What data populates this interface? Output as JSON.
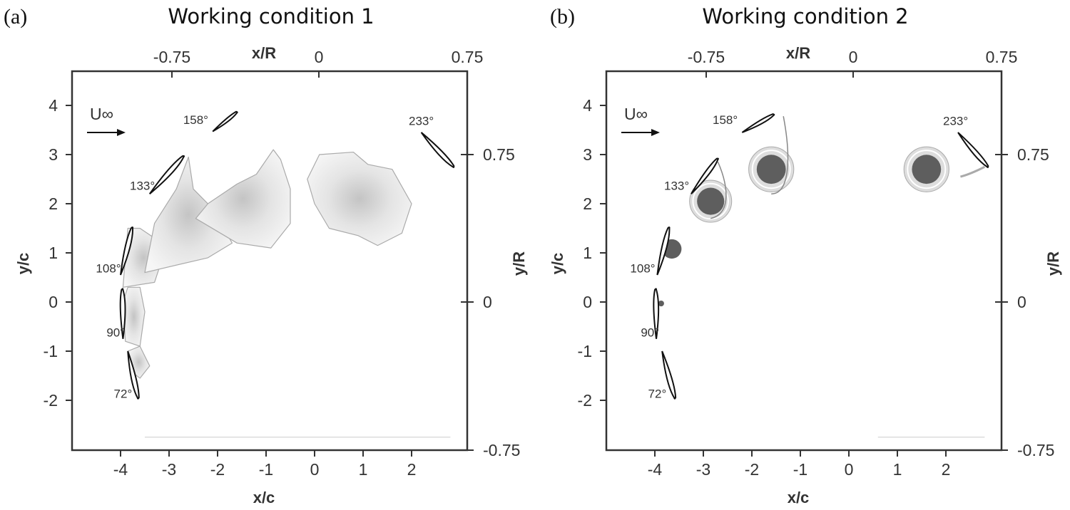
{
  "chart_data": [
    {
      "type": "diagram",
      "panel_label": "(a)",
      "title": "Working condition 1",
      "xlabel_bottom": "x/c",
      "xlabel_top": "x/R",
      "ylabel_left": "y/c",
      "ylabel_right": "y/R",
      "xlim": [
        -5,
        3.15
      ],
      "ylim": [
        -3.03,
        4.7
      ],
      "x_ticks": [
        "-4",
        "-3",
        "-2",
        "-1",
        "0",
        "1",
        "2"
      ],
      "x_tick_values": [
        -4,
        -3,
        -2,
        -1,
        0,
        1,
        2
      ],
      "y_ticks": [
        "4",
        "3",
        "2",
        "1",
        "0",
        "-1",
        "-2"
      ],
      "y_tick_values": [
        4,
        3,
        2,
        1,
        0,
        -1,
        -2
      ],
      "top_ticks": [
        "-0.75",
        "0",
        "0.75"
      ],
      "right_ticks": [
        "0.75",
        "0",
        "-0.75"
      ],
      "freestream_label": "U∞",
      "airfoils": [
        {
          "label": "158°",
          "from": [
            -2.1,
            3.47
          ],
          "to": [
            -1.6,
            3.85
          ],
          "label_at": [
            -2.45,
            3.62
          ]
        },
        {
          "label": "233°",
          "from": [
            2.2,
            3.45
          ],
          "to": [
            2.85,
            2.75
          ],
          "label_at": [
            2.2,
            3.6
          ]
        },
        {
          "label": "133°",
          "from": [
            -3.4,
            2.2
          ],
          "to": [
            -2.7,
            2.95
          ],
          "label_at": [
            -3.55,
            2.28
          ]
        },
        {
          "label": "108°",
          "from": [
            -4.0,
            0.55
          ],
          "to": [
            -3.75,
            1.5
          ],
          "label_at": [
            -4.25,
            0.6
          ]
        },
        {
          "label": "90°",
          "from": [
            -3.95,
            -0.75
          ],
          "to": [
            -3.95,
            0.25
          ],
          "label_at": [
            -4.1,
            -0.7
          ]
        },
        {
          "label": "72°",
          "from": [
            -3.85,
            -1.0
          ],
          "to": [
            -3.65,
            -1.95
          ],
          "label_at": [
            -3.95,
            -1.95
          ]
        }
      ]
    },
    {
      "type": "diagram",
      "panel_label": "(b)",
      "title": "Working condition 2",
      "xlabel_bottom": "x/c",
      "xlabel_top": "x/R",
      "ylabel_left": "y/c",
      "ylabel_right": "y/R",
      "xlim": [
        -5,
        3.15
      ],
      "ylim": [
        -3.03,
        4.7
      ],
      "x_ticks": [
        "-4",
        "-3",
        "-2",
        "-1",
        "0",
        "1",
        "2"
      ],
      "x_tick_values": [
        -4,
        -3,
        -2,
        -1,
        0,
        1,
        2
      ],
      "y_ticks": [
        "4",
        "3",
        "2",
        "1",
        "0",
        "-1",
        "-2"
      ],
      "y_tick_values": [
        4,
        3,
        2,
        1,
        0,
        -1,
        -2
      ],
      "top_ticks": [
        "-0.75",
        "0",
        "0.75"
      ],
      "right_ticks": [
        "0.75",
        "0",
        "-0.75"
      ],
      "freestream_label": "U∞",
      "airfoils": [
        {
          "label": "158°",
          "from": [
            -2.2,
            3.45
          ],
          "to": [
            -1.55,
            3.8
          ],
          "label_at": [
            -2.55,
            3.62
          ]
        },
        {
          "label": "233°",
          "from": [
            2.25,
            3.45
          ],
          "to": [
            2.85,
            2.75
          ],
          "label_at": [
            2.2,
            3.6
          ]
        },
        {
          "label": "133°",
          "from": [
            -3.25,
            2.2
          ],
          "to": [
            -2.7,
            2.9
          ],
          "label_at": [
            -3.55,
            2.28
          ]
        },
        {
          "label": "108°",
          "from": [
            -3.95,
            0.55
          ],
          "to": [
            -3.7,
            1.5
          ],
          "label_at": [
            -4.25,
            0.6
          ]
        },
        {
          "label": "90°",
          "from": [
            -3.97,
            -0.75
          ],
          "to": [
            -3.97,
            0.25
          ],
          "label_at": [
            -4.1,
            -0.7
          ]
        },
        {
          "label": "72°",
          "from": [
            -3.85,
            -1.0
          ],
          "to": [
            -3.6,
            -1.95
          ],
          "label_at": [
            -3.95,
            -1.95
          ]
        }
      ],
      "vortices": [
        {
          "x": -2.85,
          "y": 2.05,
          "r": 0.28
        },
        {
          "x": -1.6,
          "y": 2.7,
          "r": 0.3
        },
        {
          "x": 1.6,
          "y": 2.7,
          "r": 0.3
        },
        {
          "x": -3.65,
          "y": 1.08,
          "r": 0.2
        },
        {
          "x": -3.87,
          "y": -0.03,
          "r": 0.06
        }
      ]
    }
  ]
}
